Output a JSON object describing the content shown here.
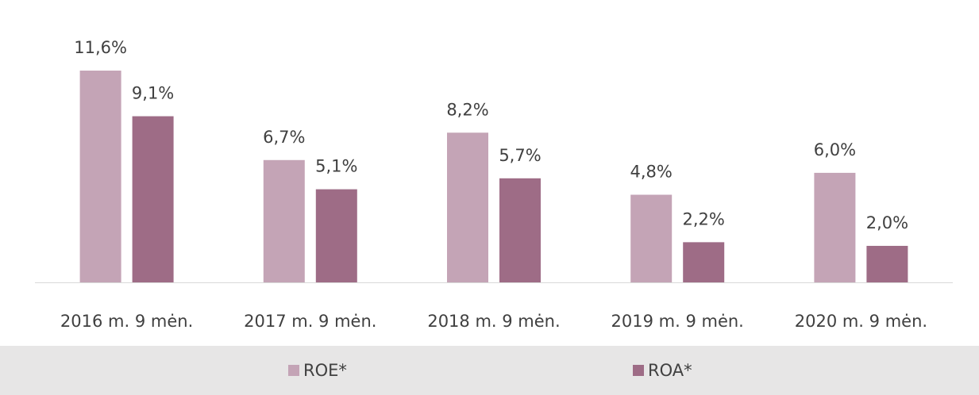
{
  "chart_data": {
    "type": "bar",
    "categories": [
      "2016 m. 9 mėn.",
      "2017 m. 9 mėn.",
      "2018 m. 9 mėn.",
      "2019 m. 9 mėn.",
      "2020 m. 9 mėn."
    ],
    "series": [
      {
        "name": "ROE*",
        "color": "#c4a4b6",
        "values": [
          11.6,
          6.7,
          8.2,
          4.8,
          6.0
        ],
        "value_labels": [
          "11,6%",
          "6,7%",
          "8,2%",
          "4,8%",
          "6,0%"
        ]
      },
      {
        "name": "ROA*",
        "color": "#9e6c86",
        "values": [
          9.1,
          5.1,
          5.7,
          2.2,
          2.0
        ],
        "value_labels": [
          "9,1%",
          "5,1%",
          "5,7%",
          "2,2%",
          "2,0%"
        ]
      }
    ],
    "legend": "bottom"
  }
}
